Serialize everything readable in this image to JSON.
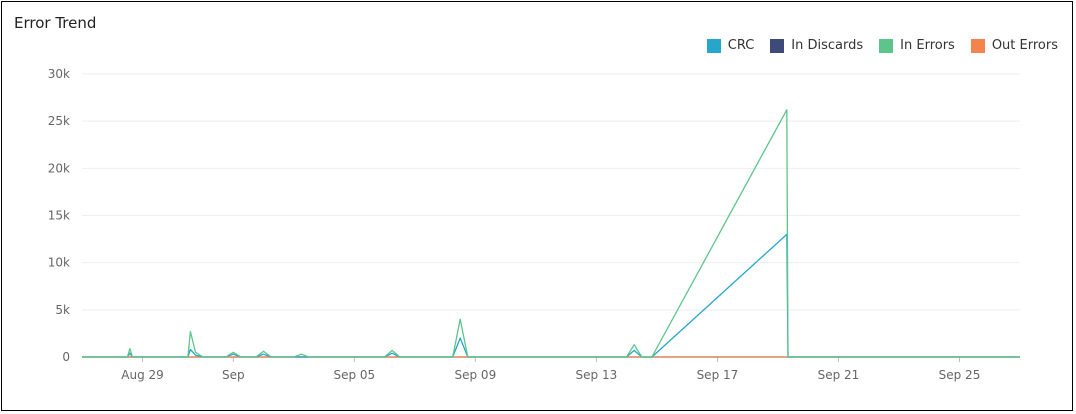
{
  "title": "Error Trend",
  "colors": {
    "grid": "#eeeeee",
    "axis": "#bbbbbb"
  },
  "chart_data": {
    "type": "line",
    "title": "Error Trend",
    "legend_position": "top-right",
    "grid": true,
    "ylim": [
      0,
      30000
    ],
    "y_ticks": [
      0,
      5000,
      10000,
      15000,
      20000,
      25000,
      30000
    ],
    "y_tick_labels": [
      "0",
      "5k",
      "10k",
      "15k",
      "20k",
      "25k",
      "30k"
    ],
    "xlim": [
      "2024-08-27",
      "2024-09-27"
    ],
    "x_ticks": [
      {
        "date": "2024-08-29",
        "label": "Aug 29"
      },
      {
        "date": "2024-09-01",
        "label": "Sep"
      },
      {
        "date": "2024-09-05",
        "label": "Sep 05"
      },
      {
        "date": "2024-09-09",
        "label": "Sep 09"
      },
      {
        "date": "2024-09-13",
        "label": "Sep 13"
      },
      {
        "date": "2024-09-17",
        "label": "Sep 17"
      },
      {
        "date": "2024-09-21",
        "label": "Sep 21"
      },
      {
        "date": "2024-09-25",
        "label": "Sep 25"
      }
    ],
    "series": [
      {
        "name": "CRC",
        "color": "#26a6c9",
        "points": [
          [
            "2024-08-27T00:00",
            0
          ],
          [
            "2024-08-28T12:00",
            0
          ],
          [
            "2024-08-28T14:00",
            400
          ],
          [
            "2024-08-28T16:00",
            0
          ],
          [
            "2024-08-30T12:00",
            0
          ],
          [
            "2024-08-30T14:00",
            800
          ],
          [
            "2024-08-30T18:00",
            200
          ],
          [
            "2024-08-31T00:00",
            0
          ],
          [
            "2024-08-31T18:00",
            0
          ],
          [
            "2024-09-01T00:00",
            300
          ],
          [
            "2024-09-01T06:00",
            0
          ],
          [
            "2024-09-01T18:00",
            0
          ],
          [
            "2024-09-02T00:00",
            300
          ],
          [
            "2024-09-02T06:00",
            0
          ],
          [
            "2024-09-06T00:00",
            0
          ],
          [
            "2024-09-06T06:00",
            400
          ],
          [
            "2024-09-06T12:00",
            0
          ],
          [
            "2024-09-08T06:00",
            0
          ],
          [
            "2024-09-08T12:00",
            2000
          ],
          [
            "2024-09-08T18:00",
            0
          ],
          [
            "2024-09-14T00:00",
            0
          ],
          [
            "2024-09-14T06:00",
            700
          ],
          [
            "2024-09-14T12:00",
            0
          ],
          [
            "2024-09-14T20:00",
            0
          ],
          [
            "2024-09-19T07:00",
            13000
          ],
          [
            "2024-09-19T08:00",
            0
          ],
          [
            "2024-09-27T00:00",
            0
          ]
        ]
      },
      {
        "name": "In Discards",
        "color": "#3d4a7a",
        "points": [
          [
            "2024-08-27T00:00",
            0
          ],
          [
            "2024-09-27T00:00",
            0
          ]
        ]
      },
      {
        "name": "In Errors",
        "color": "#5cc58a",
        "points": [
          [
            "2024-08-27T00:00",
            0
          ],
          [
            "2024-08-28T12:00",
            0
          ],
          [
            "2024-08-28T14:00",
            900
          ],
          [
            "2024-08-28T16:00",
            0
          ],
          [
            "2024-08-30T12:00",
            0
          ],
          [
            "2024-08-30T14:00",
            2700
          ],
          [
            "2024-08-30T18:00",
            500
          ],
          [
            "2024-08-31T00:00",
            0
          ],
          [
            "2024-08-31T18:00",
            0
          ],
          [
            "2024-09-01T00:00",
            500
          ],
          [
            "2024-09-01T06:00",
            0
          ],
          [
            "2024-09-01T18:00",
            0
          ],
          [
            "2024-09-02T00:00",
            600
          ],
          [
            "2024-09-02T06:00",
            0
          ],
          [
            "2024-09-03T00:00",
            0
          ],
          [
            "2024-09-03T06:00",
            300
          ],
          [
            "2024-09-03T12:00",
            0
          ],
          [
            "2024-09-06T00:00",
            0
          ],
          [
            "2024-09-06T06:00",
            700
          ],
          [
            "2024-09-06T12:00",
            0
          ],
          [
            "2024-09-08T06:00",
            0
          ],
          [
            "2024-09-08T12:00",
            4000
          ],
          [
            "2024-09-08T18:00",
            0
          ],
          [
            "2024-09-14T00:00",
            0
          ],
          [
            "2024-09-14T06:00",
            1300
          ],
          [
            "2024-09-14T12:00",
            0
          ],
          [
            "2024-09-14T20:00",
            0
          ],
          [
            "2024-09-19T07:00",
            26200
          ],
          [
            "2024-09-19T08:00",
            0
          ],
          [
            "2024-09-27T00:00",
            0
          ]
        ]
      },
      {
        "name": "Out Errors",
        "color": "#f5844c",
        "points": [
          [
            "2024-08-27T00:00",
            0
          ],
          [
            "2024-09-27T00:00",
            0
          ]
        ]
      }
    ]
  }
}
